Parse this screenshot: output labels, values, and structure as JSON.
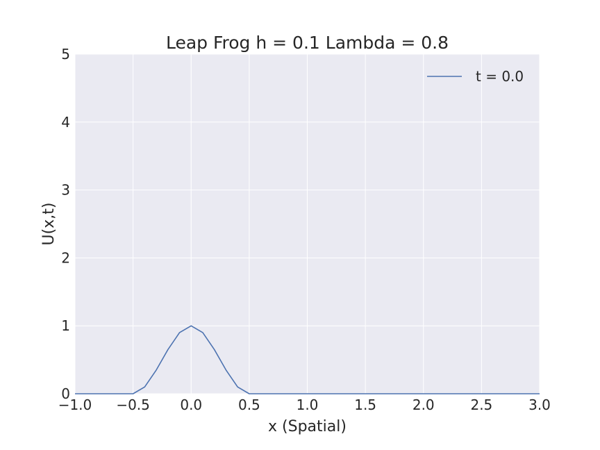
{
  "chart_data": {
    "type": "line",
    "title": "Leap Frog h = 0.1 Lambda = 0.8",
    "xlabel": "x (Spatial)",
    "ylabel": "U(x,t)",
    "xlim": [
      -1.0,
      3.0
    ],
    "ylim": [
      0,
      5
    ],
    "xticks": [
      "−1.0",
      "−0.5",
      "0.0",
      "0.5",
      "1.0",
      "1.5",
      "2.0",
      "2.5",
      "3.0"
    ],
    "yticks": [
      "0",
      "1",
      "2",
      "3",
      "4",
      "5"
    ],
    "grid": true,
    "legend_position": "top-right",
    "colors": {
      "background": "#eaeaf2",
      "grid": "#ffffff",
      "series": "#4c72b0"
    },
    "series": [
      {
        "name": "t = 0.0",
        "x": [
          -1.0,
          -0.9,
          -0.8,
          -0.7,
          -0.6,
          -0.5,
          -0.4,
          -0.3,
          -0.2,
          -0.1,
          0.0,
          0.1,
          0.2,
          0.3,
          0.4,
          0.5,
          0.6,
          0.7,
          0.8,
          0.9,
          1.0,
          1.1,
          1.2,
          1.3,
          1.4,
          1.5,
          1.6,
          1.7,
          1.8,
          1.9,
          2.0,
          2.1,
          2.2,
          2.3,
          2.4,
          2.5,
          2.6,
          2.7,
          2.8,
          2.9,
          3.0
        ],
        "y": [
          0,
          0,
          0,
          0,
          0,
          0,
          0.1,
          0.35,
          0.65,
          0.9,
          1.0,
          0.9,
          0.65,
          0.35,
          0.1,
          0,
          0,
          0,
          0,
          0,
          0,
          0,
          0,
          0,
          0,
          0,
          0,
          0,
          0,
          0,
          0,
          0,
          0,
          0,
          0,
          0,
          0,
          0,
          0,
          0,
          0
        ]
      }
    ]
  }
}
